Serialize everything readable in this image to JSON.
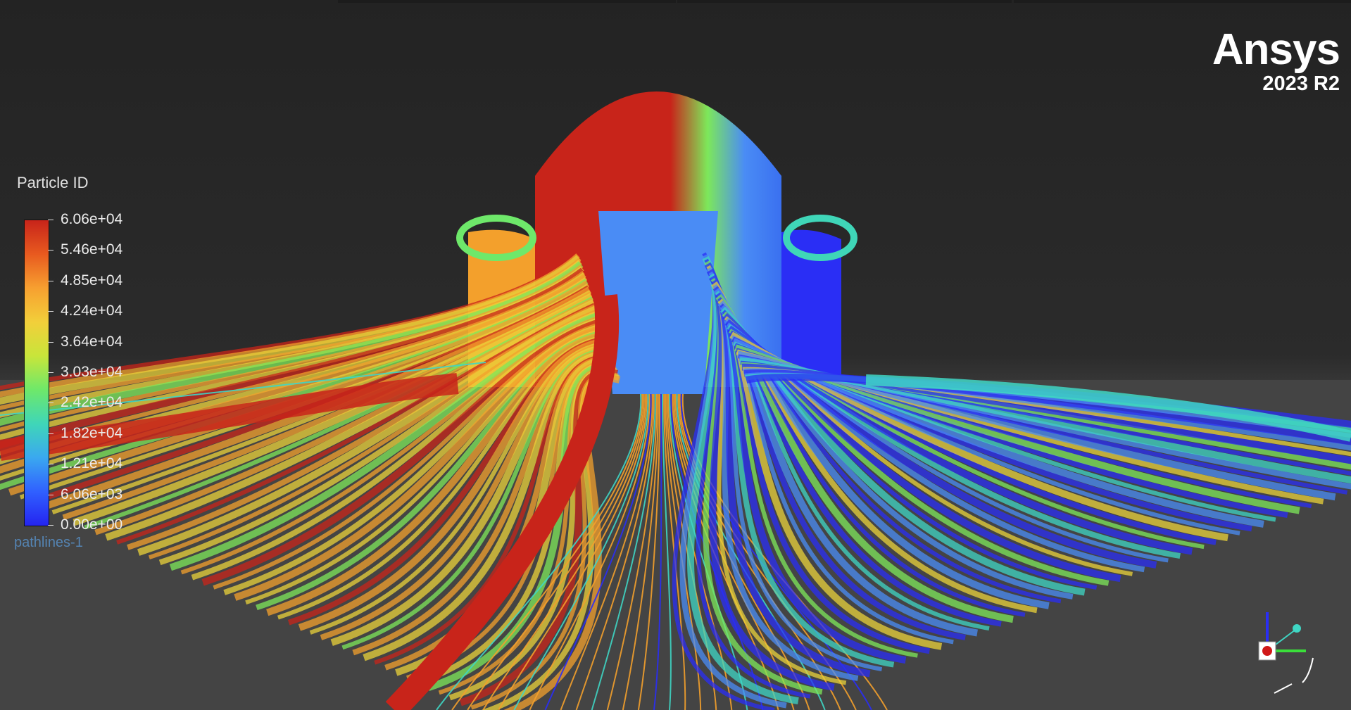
{
  "brand": {
    "name": "Ansys",
    "version": "2023 R2"
  },
  "legend": {
    "title": "Particle ID",
    "ticks": [
      "6.06e+04",
      "5.46e+04",
      "4.85e+04",
      "4.24e+04",
      "3.64e+04",
      "3.03e+04",
      "2.42e+04",
      "1.82e+04",
      "1.21e+04",
      "6.06e+03",
      "0.00e+00"
    ],
    "subtitle": "pathlines-1",
    "colormap": [
      "#c8241a",
      "#e85a1f",
      "#f7a030",
      "#f2cf3a",
      "#c8e53a",
      "#6ee86a",
      "#3fd6b8",
      "#3aa8f0",
      "#3060ff",
      "#2424f0"
    ]
  },
  "colors": {
    "red": "#c8241a",
    "orange": "#f3a02c",
    "yellow": "#e9d13a",
    "green": "#7de85a",
    "cyan": "#3fd6c4",
    "lightblue": "#4a8cf5",
    "blue": "#2a2ef5"
  }
}
